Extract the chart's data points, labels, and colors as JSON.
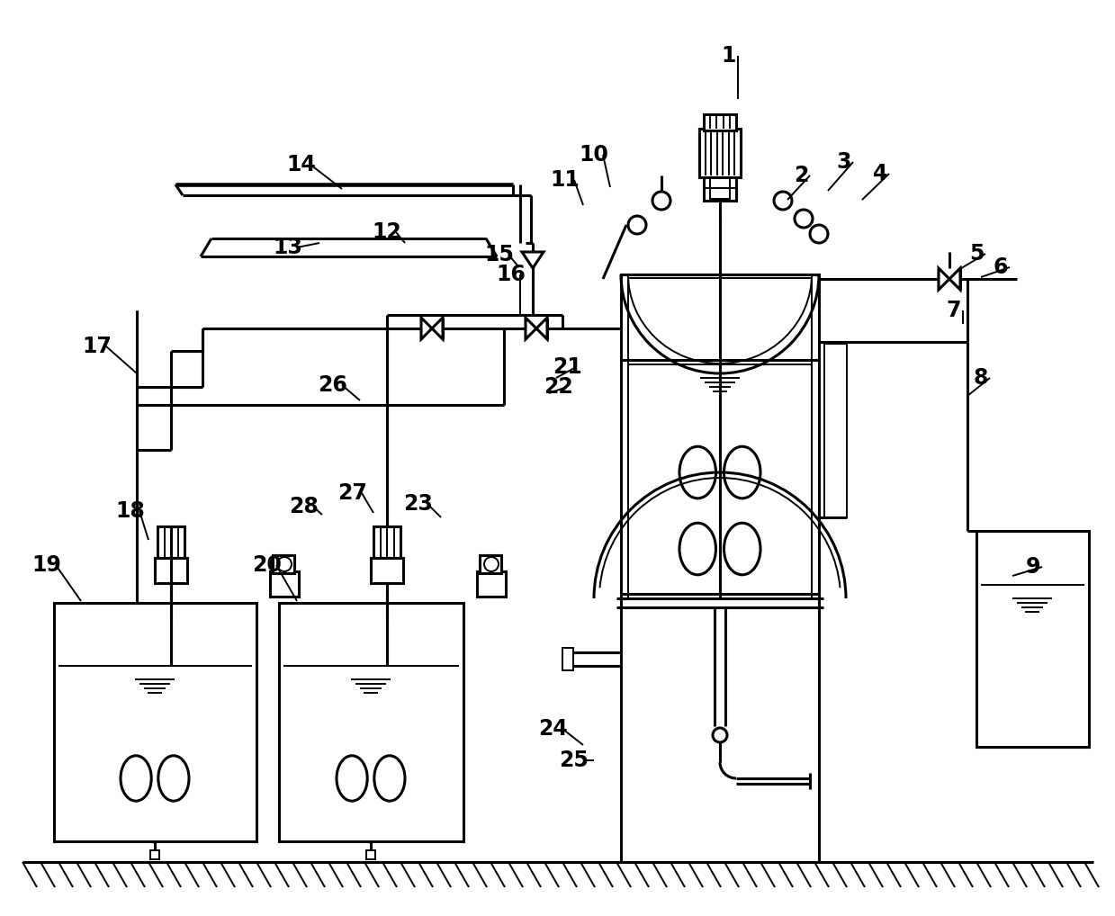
{
  "bg_color": "#ffffff",
  "line_color": "#000000",
  "lw": 2.2,
  "tlw": 1.4,
  "fs": 17
}
